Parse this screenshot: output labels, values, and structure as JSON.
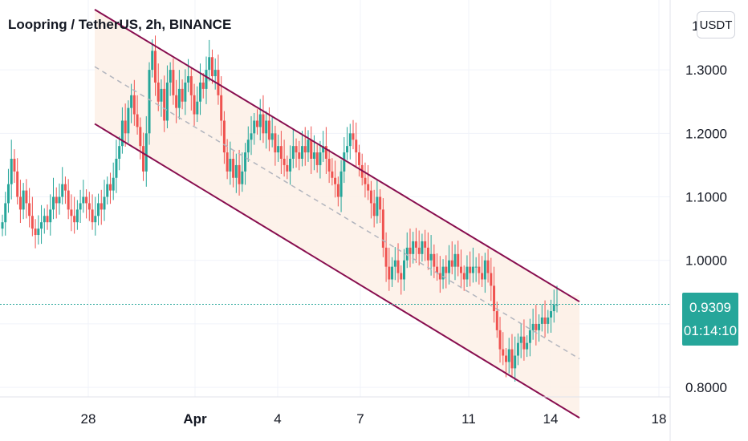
{
  "header": {
    "title": "Loopring / TetherUS, 2h, BINANCE"
  },
  "currency_button": {
    "label": "USDT"
  },
  "last_price": {
    "price": "0.9309",
    "countdown": "01:14:10"
  },
  "colors": {
    "up": "#26a69a",
    "down": "#ef5350",
    "channel": "#880e4f",
    "channel_fill": "#fdf0e6",
    "last_line": "#26a69a"
  },
  "chart_data": {
    "type": "candlestick",
    "title": "Loopring / TetherUS, 2h, BINANCE",
    "timeframe": "2h",
    "y_ticks": [
      "1.3000",
      "1.2000",
      "1.1000",
      "1.0000",
      "0.8000"
    ],
    "y_tick_values": [
      1.3,
      1.2,
      1.1,
      1.0,
      0.8
    ],
    "y_top_partial_label": "1",
    "ylim": [
      0.785,
      1.41
    ],
    "x_ticks": [
      "28",
      "Apr",
      "4",
      "7",
      "11",
      "14",
      "18"
    ],
    "last_price": 0.9309,
    "grid": true,
    "channel": {
      "upper": [
        {
          "t": 0.0,
          "price": 1.395
        },
        {
          "t": 1.0,
          "price": 0.935
        }
      ],
      "lower": [
        {
          "t": 0.0,
          "price": 1.215
        },
        {
          "t": 1.0,
          "price": 0.752
        }
      ],
      "mid": [
        {
          "t": 0.0,
          "price": 1.305
        },
        {
          "t": 1.0,
          "price": 0.845
        }
      ]
    },
    "closes": [
      1.06,
      1.09,
      1.12,
      1.16,
      1.14,
      1.1,
      1.08,
      1.11,
      1.09,
      1.07,
      1.05,
      1.04,
      1.05,
      1.06,
      1.07,
      1.06,
      1.08,
      1.1,
      1.09,
      1.1,
      1.12,
      1.11,
      1.08,
      1.07,
      1.06,
      1.08,
      1.09,
      1.1,
      1.09,
      1.08,
      1.06,
      1.07,
      1.09,
      1.08,
      1.1,
      1.12,
      1.11,
      1.13,
      1.16,
      1.18,
      1.22,
      1.2,
      1.24,
      1.26,
      1.23,
      1.21,
      1.18,
      1.14,
      1.2,
      1.3,
      1.33,
      1.28,
      1.25,
      1.27,
      1.22,
      1.28,
      1.3,
      1.26,
      1.24,
      1.27,
      1.25,
      1.28,
      1.29,
      1.26,
      1.23,
      1.25,
      1.28,
      1.27,
      1.3,
      1.32,
      1.29,
      1.3,
      1.26,
      1.22,
      1.17,
      1.14,
      1.16,
      1.13,
      1.15,
      1.12,
      1.14,
      1.17,
      1.19,
      1.2,
      1.22,
      1.21,
      1.23,
      1.2,
      1.22,
      1.19,
      1.2,
      1.17,
      1.18,
      1.16,
      1.15,
      1.14,
      1.16,
      1.18,
      1.17,
      1.16,
      1.18,
      1.17,
      1.19,
      1.16,
      1.17,
      1.15,
      1.17,
      1.18,
      1.16,
      1.14,
      1.13,
      1.12,
      1.1,
      1.14,
      1.17,
      1.18,
      1.2,
      1.19,
      1.17,
      1.15,
      1.13,
      1.12,
      1.11,
      1.09,
      1.07,
      1.1,
      1.08,
      1.02,
      0.99,
      0.97,
      0.99,
      1.0,
      0.98,
      0.97,
      1.0,
      1.02,
      1.01,
      1.03,
      1.02,
      1.01,
      1.03,
      1.02,
      1.0,
      1.01,
      0.99,
      0.98,
      0.97,
      0.99,
      0.98,
      1.0,
      0.99,
      1.01,
      0.99,
      0.98,
      0.97,
      0.99,
      0.98,
      0.99,
      0.99,
      0.98,
      0.97,
      1.0,
      0.98,
      0.96,
      0.92,
      0.89,
      0.86,
      0.85,
      0.84,
      0.86,
      0.83,
      0.85,
      0.87,
      0.88,
      0.86,
      0.87,
      0.89,
      0.9,
      0.89,
      0.9,
      0.91,
      0.9,
      0.91,
      0.92,
      0.93,
      0.93
    ]
  }
}
